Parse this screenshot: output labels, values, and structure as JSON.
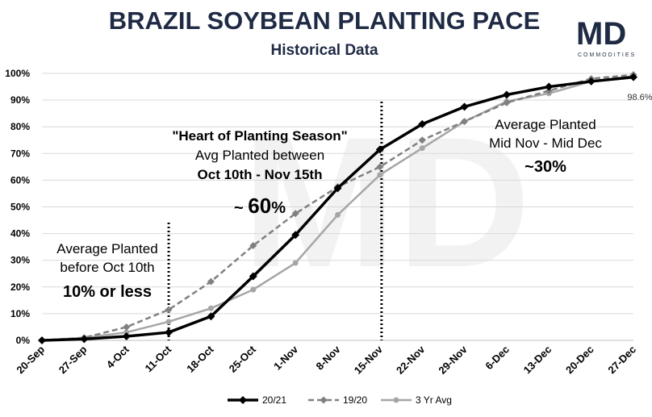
{
  "header": {
    "title": "BRAZIL SOYBEAN PLANTING PACE",
    "subtitle": "Historical Data"
  },
  "logo": {
    "letters": "MD",
    "tagline": "COMMODITIES"
  },
  "annotations": {
    "early": {
      "line1": "Average Planted",
      "line2": "before Oct 10th",
      "value": "10% or less"
    },
    "heart": {
      "line1": "\"Heart of Planting Season\"",
      "line2": "Avg Planted between",
      "line3": "Oct 10th - Nov 15th",
      "value_prefix": "~ ",
      "value_num": "60",
      "value_pct": "%"
    },
    "late": {
      "line1": "Average Planted",
      "line2": "Mid Nov - Mid Dec",
      "value": "~30%"
    },
    "final_label": "98.6%"
  },
  "colors": {
    "s2021": "#000000",
    "s1920": "#808080",
    "avg3": "#a6a6a6",
    "grid": "#d9d9d9",
    "title": "#1f2a44"
  },
  "chart_data": {
    "type": "line",
    "title": "BRAZIL SOYBEAN PLANTING PACE",
    "subtitle": "Historical Data",
    "xlabel": "",
    "ylabel": "",
    "ylim": [
      0,
      100
    ],
    "y_ticks": [
      "0%",
      "10%",
      "20%",
      "30%",
      "40%",
      "50%",
      "60%",
      "70%",
      "80%",
      "90%",
      "100%"
    ],
    "categories": [
      "20-Sep",
      "27-Sep",
      "4-Oct",
      "11-Oct",
      "18-Oct",
      "25-Oct",
      "1-Nov",
      "8-Nov",
      "15-Nov",
      "22-Nov",
      "29-Nov",
      "6-Dec",
      "13-Dec",
      "20-Dec",
      "27-Dec"
    ],
    "series": [
      {
        "name": "20/21",
        "style": "solid",
        "values": [
          0,
          0.5,
          1.5,
          3,
          9,
          24,
          39.5,
          57,
          71.5,
          81,
          87.5,
          92,
          95,
          97,
          98.6
        ]
      },
      {
        "name": "19/20",
        "style": "dashed",
        "values": [
          0,
          1,
          5,
          11.5,
          22,
          35.5,
          47.5,
          57.5,
          65,
          75,
          82,
          89,
          93.5,
          98,
          99.5
        ]
      },
      {
        "name": "3 Yr Avg",
        "style": "solid",
        "values": [
          0,
          1,
          3,
          7,
          12,
          19,
          29,
          47,
          62,
          72,
          82,
          89.5,
          92.5,
          97,
          99
        ]
      }
    ],
    "vertical_markers": [
      "11-Oct",
      "15-Nov"
    ],
    "legend_position": "bottom"
  }
}
